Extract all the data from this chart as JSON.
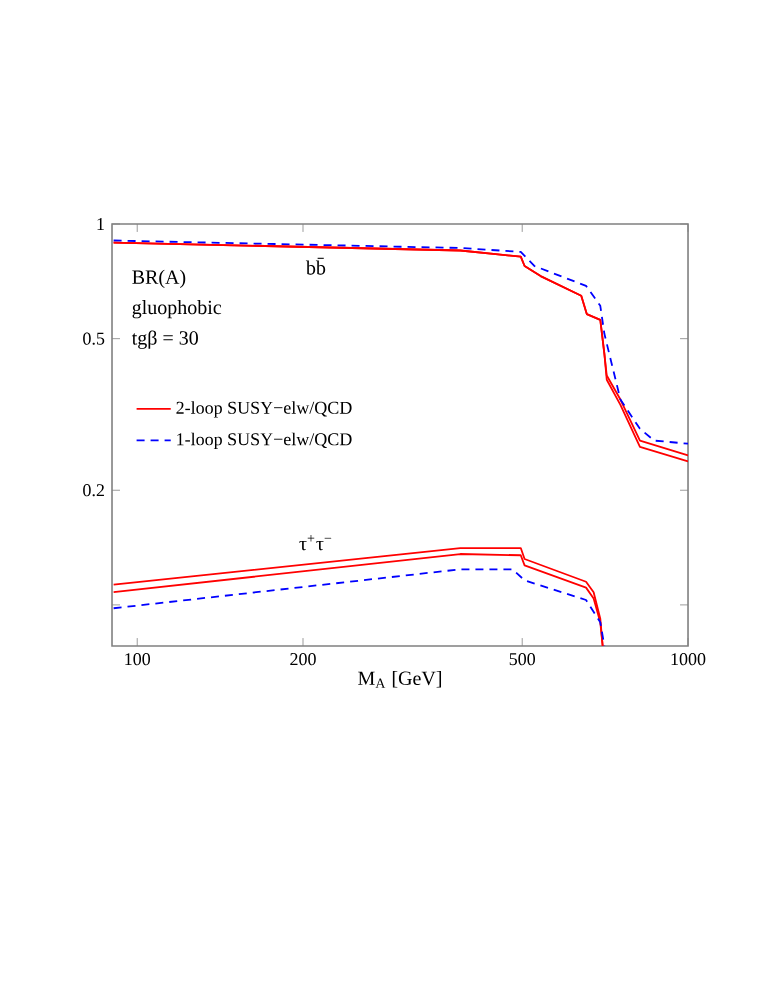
{
  "chart_data": {
    "type": "line",
    "xlabel": "M$_{A}$ [GeV]",
    "log": "xy",
    "xlim": [
      90,
      1000
    ],
    "ylim": [
      0.078,
      1
    ],
    "xticks": [
      100,
      200,
      500,
      1000
    ],
    "yticks": [
      {
        "value": 0.1,
        "label": null
      },
      0.2,
      0.5,
      1
    ],
    "grid": false,
    "legend": "left",
    "marker": "none",
    "series": [
      {
        "name": "2-loop SUSY−elw/QCD",
        "color": "#ff0000",
        "line_style": "solid",
        "x": [
          90.6,
          386,
          497,
          505,
          540,
          640,
          655,
          693,
          705,
          712,
          754,
          818,
          1000
        ],
        "values": [
          0.894,
          0.852,
          0.821,
          0.776,
          0.73,
          0.648,
          0.58,
          0.56,
          0.456,
          0.4,
          0.346,
          0.27,
          0.247
        ]
      },
      {
        "name": "1-loop SUSY−elw/QCD",
        "color": "#0000ff",
        "line_style": "dashed",
        "x": [
          90.6,
          386,
          497,
          526,
          653,
          693,
          705,
          754,
          818,
          868,
          1000
        ],
        "values": [
          0.905,
          0.865,
          0.845,
          0.776,
          0.688,
          0.61,
          0.515,
          0.346,
          0.29,
          0.27,
          0.265
        ]
      },
      {
        "color": "#ff0000",
        "line_style": "solid",
        "x": [
          90.6,
          386,
          497,
          505,
          540,
          640,
          655,
          693,
          705,
          712,
          754,
          818,
          1000
        ],
        "values": [
          0.894,
          0.852,
          0.821,
          0.776,
          0.73,
          0.648,
          0.58,
          0.56,
          0.456,
          0.39,
          0.335,
          0.26,
          0.238
        ]
      },
      {
        "color": "#ff0000",
        "line_style": "solid",
        "x": [
          90.6,
          386,
          497,
          505,
          653,
          674,
          693,
          700
        ],
        "values": [
          0.113,
          0.141,
          0.141,
          0.132,
          0.115,
          0.108,
          0.092,
          0.078
        ]
      },
      {
        "color": "#ff0000",
        "line_style": "solid",
        "x": [
          90.6,
          386,
          497,
          505,
          653,
          674,
          693,
          700
        ],
        "values": [
          0.108,
          0.136,
          0.135,
          0.127,
          0.111,
          0.104,
          0.09,
          0.078
        ]
      },
      {
        "color": "#0000ff",
        "line_style": "dashed",
        "x": [
          90.6,
          386,
          480,
          505,
          653,
          693,
          705
        ],
        "values": [
          0.098,
          0.124,
          0.124,
          0.116,
          0.103,
          0.09,
          0.078
        ]
      }
    ],
    "annotations": [
      "BR(A)",
      "gluophobic",
      "tgβ = 30",
      "bb̄",
      "τ$^{+}$τ$^{−}$"
    ]
  }
}
